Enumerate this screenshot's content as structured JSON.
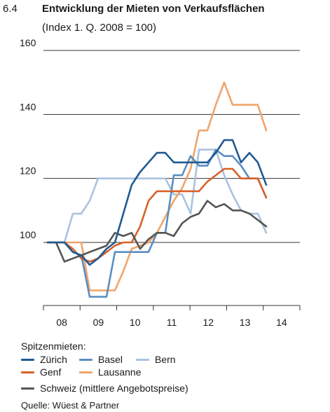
{
  "header": {
    "number": "6.4",
    "title": "Entwicklung der Mieten von Verkaufsflächen",
    "subtitle": "(Index 1. Q. 2008 = 100)"
  },
  "chart_data": {
    "type": "line",
    "x_tick_labels": [
      "08",
      "09",
      "10",
      "11",
      "12",
      "13",
      "14"
    ],
    "y_ticks": [
      100,
      120,
      140,
      160
    ],
    "ylim": [
      80,
      160
    ],
    "x_range_quarters": [
      0,
      27
    ],
    "grid": "horizontal",
    "legend_title": "Spitzenmieten:",
    "series": [
      {
        "name": "Zürich",
        "color": "#1f5a94",
        "values": [
          100,
          100,
          100,
          97,
          96,
          93,
          95,
          98,
          100,
          109,
          118,
          122,
          125,
          128,
          128,
          125,
          125,
          125,
          125,
          125,
          128,
          132,
          132,
          125,
          128,
          125,
          118
        ]
      },
      {
        "name": "Basel",
        "color": "#5b8ec2",
        "values": [
          100,
          100,
          100,
          97,
          96,
          83,
          83,
          83,
          97,
          97,
          97,
          97,
          97,
          103,
          103,
          121,
          121,
          127,
          124,
          124,
          129,
          127,
          127,
          124,
          120,
          120,
          114
        ]
      },
      {
        "name": "Bern",
        "color": "#a9c2df",
        "values": [
          100,
          100,
          100,
          109,
          109,
          113,
          120,
          120,
          120,
          120,
          120,
          120,
          120,
          120,
          120,
          115,
          115,
          109,
          129,
          129,
          129,
          121,
          115,
          110,
          109,
          109,
          103
        ]
      },
      {
        "name": "Genf",
        "color": "#d6622a",
        "values": [
          100,
          100,
          100,
          98,
          95,
          94,
          95,
          97,
          99,
          100,
          100,
          105,
          113,
          116,
          116,
          116,
          116,
          116,
          116,
          119,
          121,
          123,
          123,
          120,
          120,
          120,
          114
        ]
      },
      {
        "name": "Lausanne",
        "color": "#f0a46a",
        "values": [
          100,
          100,
          100,
          100,
          100,
          85,
          85,
          85,
          85,
          91,
          98,
          99,
          100,
          103,
          108,
          113,
          117,
          123,
          135,
          135,
          143,
          150,
          143,
          143,
          143,
          143,
          135
        ]
      },
      {
        "name": "Schweiz (mittlere Angebotspreise)",
        "color": "#555555",
        "values": [
          100,
          100,
          94,
          95,
          96,
          97,
          98,
          99,
          103,
          102,
          103,
          98,
          101,
          103,
          103,
          102,
          106,
          108,
          109,
          113,
          111,
          112,
          110,
          110,
          109,
          107,
          105
        ]
      }
    ]
  },
  "legend": {
    "title": "Spitzenmieten:",
    "source": "Quelle: Wüest & Partner"
  }
}
